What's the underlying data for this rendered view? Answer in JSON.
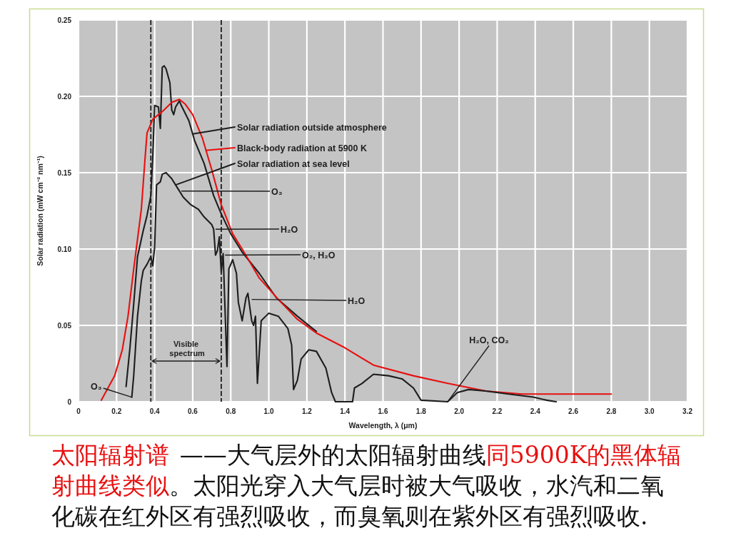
{
  "chart_data": {
    "type": "line",
    "xlabel": "Wavelength, λ (μm)",
    "ylabel": "Solar radiation (mW cm⁻² nm⁻¹)",
    "xlim": [
      0,
      3.2
    ],
    "ylim": [
      0,
      0.25
    ],
    "xticks": [
      0,
      0.2,
      0.4,
      0.6,
      0.8,
      {
        "value": 1,
        "label": "1.0"
      },
      1.2,
      1.4,
      1.6,
      1.8,
      {
        "value": 2,
        "label": "2.0"
      },
      2.2,
      2.4,
      2.6,
      2.8,
      {
        "value": 3,
        "label": "3.0"
      },
      3.2
    ],
    "yticks": [
      0,
      0.05,
      {
        "value": 0.1,
        "label": "0.10"
      },
      0.15,
      {
        "value": 0.2,
        "label": "0.20"
      },
      0.25
    ],
    "grid": true,
    "legend": "top",
    "series": [
      {
        "name": "Solar radiation outside atmosphere",
        "color": "#1e1e1e",
        "x": [
          0.25,
          0.27,
          0.29,
          0.31,
          0.34,
          0.36,
          0.38,
          0.39,
          0.4,
          0.42,
          0.43,
          0.44,
          0.45,
          0.46,
          0.48,
          0.49,
          0.5,
          0.51,
          0.53,
          0.54,
          0.58,
          0.61,
          0.66,
          0.71,
          0.75,
          0.8,
          0.86,
          0.95,
          1.04,
          1.15,
          1.25
        ],
        "values": [
          0.01,
          0.035,
          0.064,
          0.095,
          0.112,
          0.122,
          0.135,
          0.16,
          0.194,
          0.193,
          0.179,
          0.219,
          0.22,
          0.218,
          0.209,
          0.191,
          0.188,
          0.193,
          0.197,
          0.194,
          0.184,
          0.171,
          0.156,
          0.135,
          0.123,
          0.11,
          0.098,
          0.084,
          0.068,
          0.056,
          0.046
        ]
      },
      {
        "name": "Black-body radiation at 5900 K",
        "color": "#e81010",
        "x": [
          0.12,
          0.19,
          0.23,
          0.26,
          0.29,
          0.33,
          0.35,
          0.36,
          0.39,
          0.44,
          0.49,
          0.53,
          0.56,
          0.6,
          0.65,
          0.7,
          0.75,
          0.81,
          0.86,
          0.95,
          1.05,
          1.15,
          1.25,
          1.39,
          1.55,
          1.76,
          1.94,
          2.14,
          2.33,
          2.8
        ],
        "values": [
          0.001,
          0.017,
          0.034,
          0.056,
          0.087,
          0.126,
          0.16,
          0.176,
          0.185,
          0.19,
          0.196,
          0.198,
          0.195,
          0.188,
          0.173,
          0.152,
          0.129,
          0.11,
          0.1,
          0.081,
          0.067,
          0.054,
          0.045,
          0.036,
          0.024,
          0.017,
          0.012,
          0.007,
          0.005,
          0.005
        ]
      },
      {
        "name": "Solar radiation at sea level",
        "color": "#1e1e1e",
        "x": [
          0.28,
          0.29,
          0.31,
          0.33,
          0.34,
          0.36,
          0.38,
          0.39,
          0.4,
          0.41,
          0.43,
          0.44,
          0.46,
          0.49,
          0.52,
          0.55,
          0.59,
          0.63,
          0.66,
          0.7,
          0.71,
          0.72,
          0.73,
          0.74,
          0.75,
          0.76,
          0.78,
          0.79,
          0.81,
          0.83,
          0.84,
          0.86,
          0.88,
          0.89,
          0.91,
          0.92,
          0.93,
          0.94,
          0.96,
          1.0,
          1.05,
          1.1,
          1.12,
          1.13,
          1.15,
          1.17,
          1.21,
          1.25,
          1.3,
          1.33,
          1.35,
          1.44,
          1.45,
          1.49,
          1.55,
          1.63,
          1.7,
          1.76,
          1.8,
          1.94,
          1.99,
          2.05,
          2.14,
          2.26,
          2.39,
          2.46,
          2.51
        ],
        "values": [
          0.003,
          0.017,
          0.056,
          0.079,
          0.086,
          0.09,
          0.095,
          0.089,
          0.101,
          0.142,
          0.144,
          0.149,
          0.15,
          0.146,
          0.14,
          0.134,
          0.129,
          0.126,
          0.121,
          0.116,
          0.113,
          0.096,
          0.099,
          0.108,
          0.085,
          0.097,
          0.023,
          0.087,
          0.093,
          0.084,
          0.065,
          0.053,
          0.068,
          0.071,
          0.053,
          0.05,
          0.056,
          0.012,
          0.053,
          0.058,
          0.056,
          0.048,
          0.037,
          0.008,
          0.014,
          0.028,
          0.034,
          0.033,
          0.022,
          0.006,
          0,
          0,
          0.009,
          0.012,
          0.018,
          0.017,
          0.015,
          0.009,
          0.001,
          0,
          0.006,
          0.008,
          0.007,
          0.005,
          0.003,
          0.001,
          0
        ]
      }
    ],
    "ref_lines": [
      {
        "axis": "x",
        "value": 0.38,
        "color": "#1e1e1e",
        "line_style": "dashed"
      },
      {
        "axis": "x",
        "value": 0.75,
        "color": "#1e1e1e",
        "line_style": "dashed"
      }
    ],
    "annotations": [
      {
        "text": "O₃",
        "x": 0.54,
        "y": 0.138
      },
      {
        "text": "H₂O",
        "x": 0.72,
        "y": 0.113
      },
      {
        "text": "O₂, H₂O",
        "x": 0.77,
        "y": 0.096
      },
      {
        "text": "H₂O",
        "x": 0.91,
        "y": 0.067
      },
      {
        "text": "H₂O, CO₂",
        "x": 1.94,
        "y": 0
      },
      {
        "text": "O₃",
        "x": 0.28,
        "y": 0.003
      },
      "Visible spectrum",
      "太阳辐射谱",
      "——大气层外的太阳辐射曲线",
      "同5900K的黑体辐",
      "射曲线类似",
      "。太阳光穿入大气层时被大气吸收，水汽和二氧",
      "化碳在红外区有强烈吸收，而臭氧则在紫外区有强烈吸收."
    ]
  }
}
